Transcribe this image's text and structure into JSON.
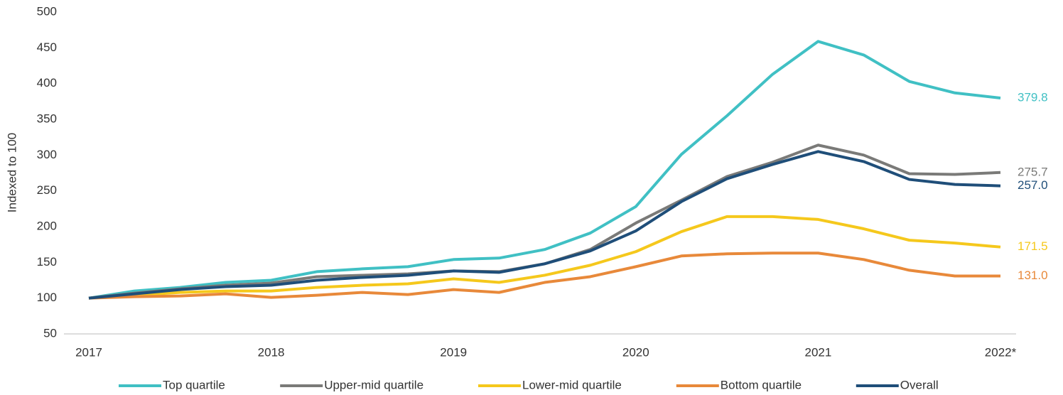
{
  "chart_data": {
    "type": "line",
    "ylabel": "Indexed to 100",
    "categories": [
      "2017",
      null,
      null,
      null,
      "2018",
      null,
      null,
      null,
      "2019",
      null,
      null,
      null,
      "2020",
      null,
      null,
      null,
      "2021",
      null,
      null,
      null,
      "2022*"
    ],
    "ylim": [
      50,
      500
    ],
    "yticks": [
      50,
      100,
      150,
      200,
      250,
      300,
      350,
      400,
      450,
      500
    ],
    "legend": "bottom",
    "series": [
      {
        "name": "Top quartile",
        "color": "#40c0c4",
        "values": [
          100,
          110,
          115,
          122,
          125,
          137,
          141,
          144,
          154,
          156,
          168,
          191,
          228,
          301,
          355,
          413,
          459,
          440,
          403,
          387,
          379.8
        ],
        "value_labels": [
          null,
          null,
          null,
          null,
          null,
          null,
          null,
          null,
          null,
          null,
          null,
          null,
          null,
          null,
          null,
          null,
          null,
          null,
          null,
          null,
          "379.8"
        ]
      },
      {
        "name": "Upper-mid quartile",
        "color": "#7a7a78",
        "values": [
          100,
          107,
          113,
          118,
          121,
          130,
          132,
          134,
          138,
          137,
          148,
          168,
          205,
          237,
          270,
          290,
          314,
          300,
          274,
          273,
          275.7
        ],
        "value_labels": [
          null,
          null,
          null,
          null,
          null,
          null,
          null,
          null,
          null,
          null,
          null,
          null,
          null,
          null,
          null,
          null,
          null,
          null,
          null,
          null,
          "275.7"
        ]
      },
      {
        "name": "Lower-mid quartile",
        "color": "#f5c81c",
        "values": [
          100,
          104,
          108,
          110,
          110,
          115,
          118,
          120,
          127,
          122,
          132,
          146,
          165,
          193,
          214,
          214,
          210,
          197,
          181,
          177,
          171.5
        ],
        "value_labels": [
          null,
          null,
          null,
          null,
          null,
          null,
          null,
          null,
          null,
          null,
          null,
          null,
          null,
          null,
          null,
          null,
          null,
          null,
          null,
          null,
          "171.5"
        ]
      },
      {
        "name": "Bottom quartile",
        "color": "#e8893a",
        "values": [
          100,
          102,
          103,
          106,
          101,
          104,
          108,
          105,
          112,
          108,
          122,
          130,
          144,
          159,
          162,
          163,
          163,
          154,
          139,
          131,
          131
        ],
        "value_labels": [
          null,
          null,
          null,
          null,
          null,
          null,
          null,
          null,
          null,
          null,
          null,
          null,
          null,
          null,
          null,
          null,
          null,
          null,
          null,
          null,
          "131.0"
        ]
      },
      {
        "name": "Overall",
        "color": "#1f4e79",
        "values": [
          100,
          106,
          112,
          116,
          118,
          125,
          129,
          132,
          138,
          136,
          148,
          166,
          194,
          235,
          267,
          287,
          305,
          291,
          266,
          259,
          257
        ],
        "value_labels": [
          null,
          null,
          null,
          null,
          null,
          null,
          null,
          null,
          null,
          null,
          null,
          null,
          null,
          null,
          null,
          null,
          null,
          null,
          null,
          null,
          "257.0"
        ]
      }
    ]
  }
}
